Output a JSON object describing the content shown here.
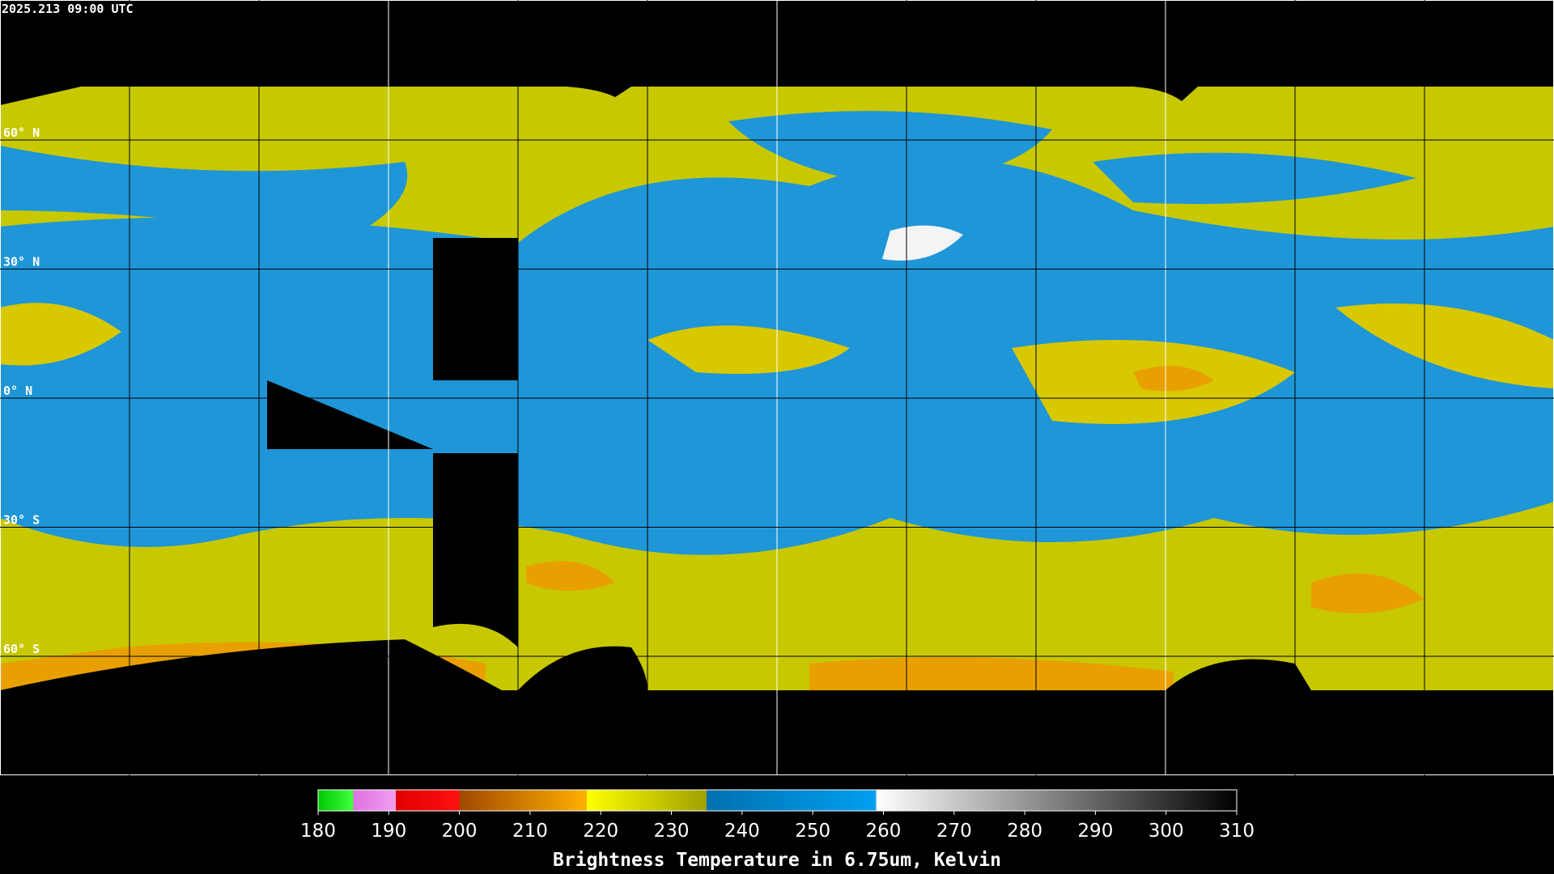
{
  "timestamp": "2025.213 09:00 UTC",
  "lat_labels": [
    "60° N",
    "30° N",
    "0° N",
    "30° S",
    "60° S"
  ],
  "colorbar": {
    "range": [
      180,
      310
    ],
    "ticks": [
      180,
      190,
      200,
      210,
      220,
      230,
      240,
      250,
      260,
      270,
      280,
      290,
      300,
      310
    ],
    "label": "Brightness Temperature in 6.75um, Kelvin",
    "stops": [
      {
        "value": 180,
        "color": "#00c800"
      },
      {
        "value": 185,
        "color": "#40ff40"
      },
      {
        "value": 185,
        "color": "#e070e0"
      },
      {
        "value": 191,
        "color": "#f0a0f0"
      },
      {
        "value": 191,
        "color": "#e00000"
      },
      {
        "value": 200,
        "color": "#ff1010"
      },
      {
        "value": 200,
        "color": "#a04800"
      },
      {
        "value": 218,
        "color": "#ffb000"
      },
      {
        "value": 218,
        "color": "#ffff00"
      },
      {
        "value": 235,
        "color": "#a0a000"
      },
      {
        "value": 235,
        "color": "#0070b0"
      },
      {
        "value": 259,
        "color": "#00a0f0"
      },
      {
        "value": 259,
        "color": "#ffffff"
      },
      {
        "value": 310,
        "color": "#000000"
      }
    ]
  }
}
